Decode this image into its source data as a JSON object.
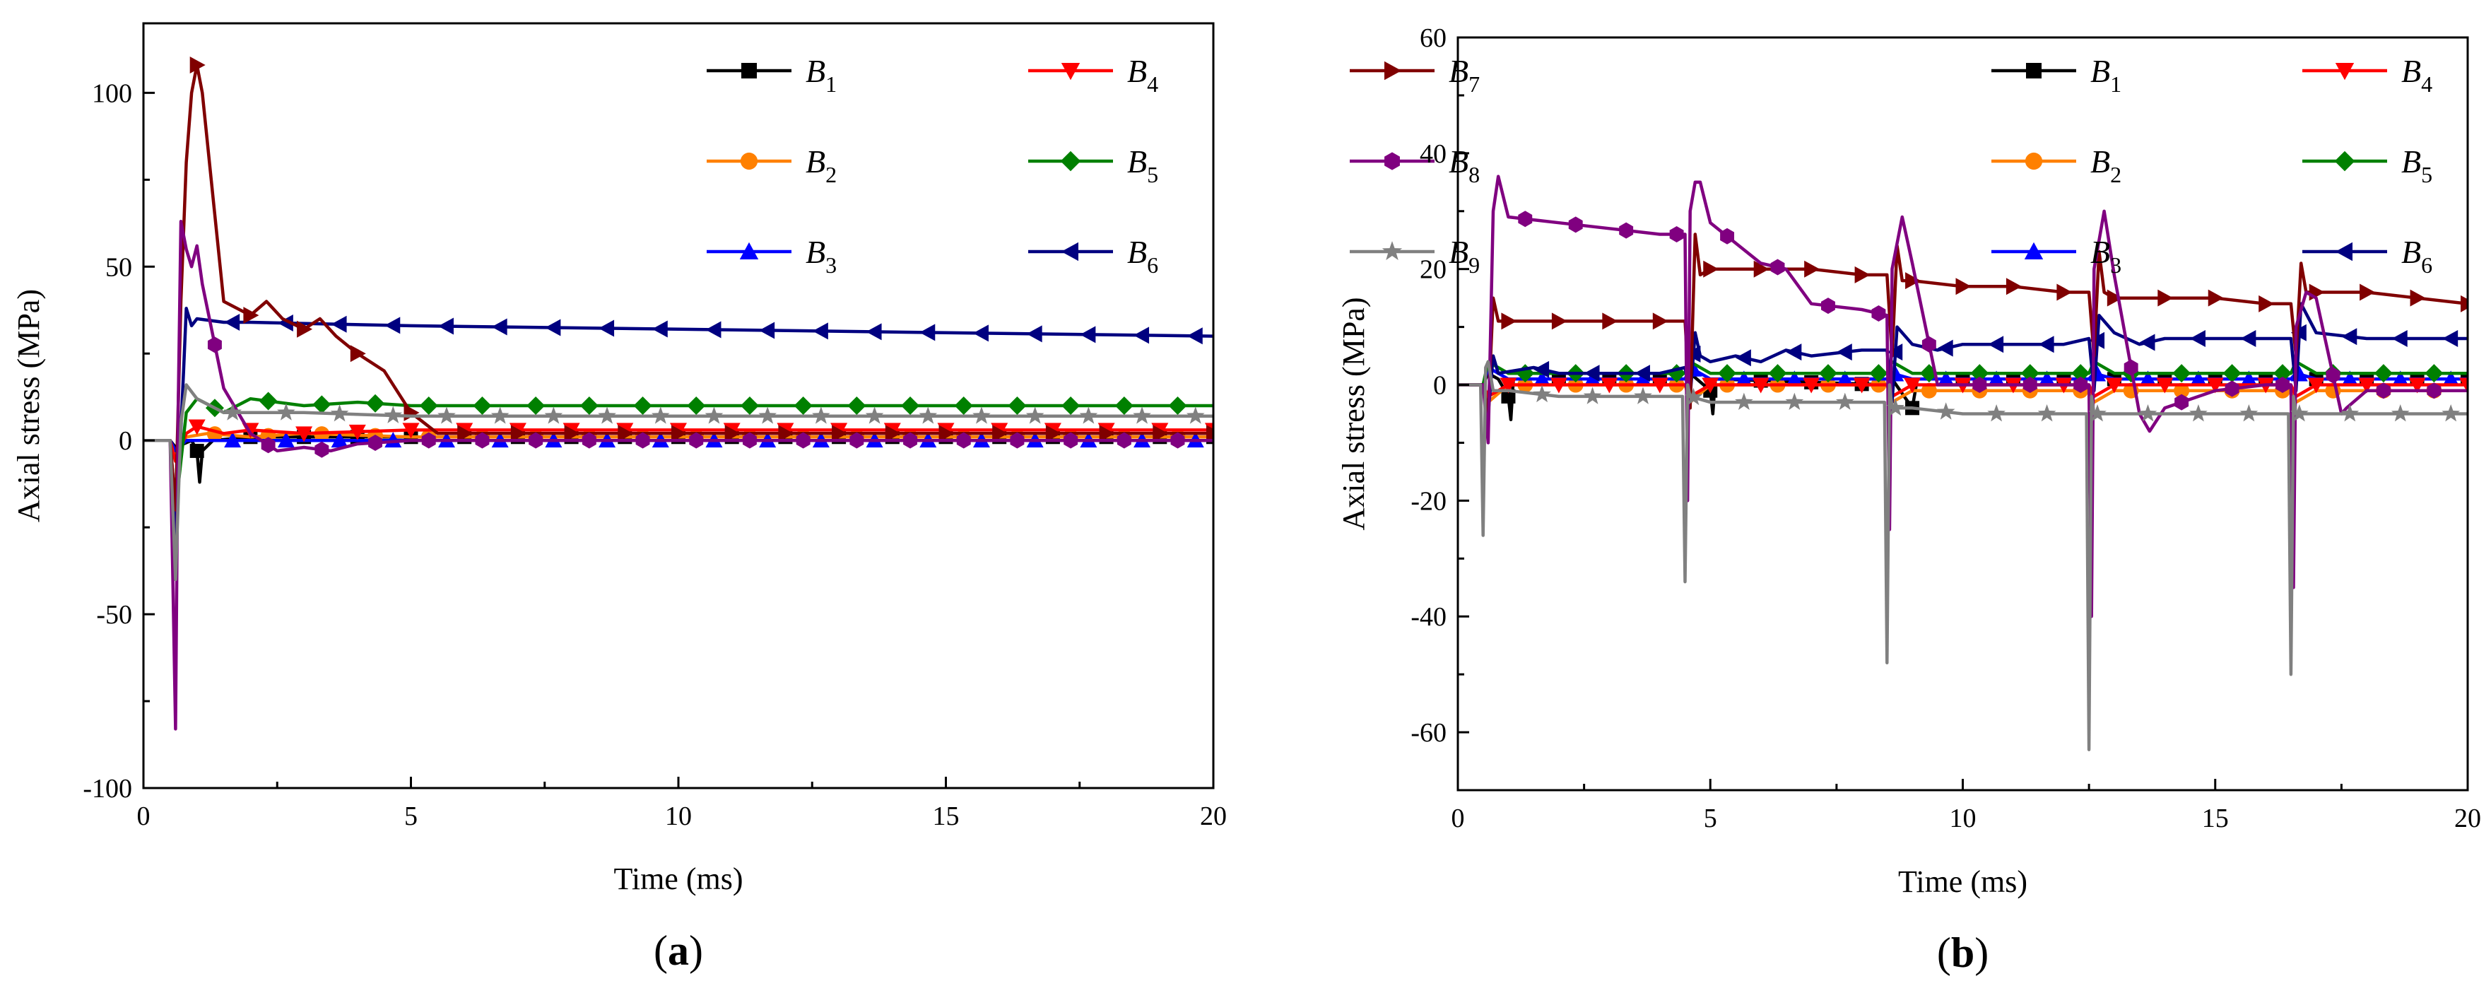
{
  "chart_data": [
    {
      "type": "line",
      "panel_label": "a",
      "xlabel": "Time (ms)",
      "ylabel": "Axial stress (MPa)",
      "xlim": [
        0,
        20
      ],
      "ylim": [
        -100,
        120
      ],
      "xticks": [
        0,
        5,
        10,
        15,
        20
      ],
      "yticks": [
        -100,
        -50,
        0,
        50,
        100
      ],
      "grid": false,
      "legend_placement": "top-right",
      "series": [
        {
          "name": "B1",
          "color": "#000000",
          "marker": "square",
          "x": [
            0,
            0.5,
            0.6,
            0.9,
            1.0,
            1.05,
            1.1,
            1.3,
            2,
            5,
            10,
            15,
            20
          ],
          "y": [
            0,
            0,
            -2,
            0,
            -3,
            -12,
            -3,
            0,
            1,
            1,
            1,
            1,
            1
          ]
        },
        {
          "name": "B2",
          "color": "#FF8000",
          "marker": "circle",
          "x": [
            0,
            0.5,
            0.6,
            0.8,
            1.2,
            2,
            3,
            5,
            10,
            15,
            20
          ],
          "y": [
            0,
            0,
            -5,
            1,
            2,
            1,
            2,
            1,
            1,
            1,
            1
          ]
        },
        {
          "name": "B3",
          "color": "#0000FF",
          "marker": "triangle-up",
          "x": [
            0,
            0.5,
            0.6,
            0.8,
            1.2,
            2,
            5,
            10,
            15,
            20
          ],
          "y": [
            0,
            0,
            -3,
            0,
            0,
            0,
            0,
            0,
            0,
            0
          ]
        },
        {
          "name": "B4",
          "color": "#FF0000",
          "marker": "triangle-down",
          "x": [
            0,
            0.5,
            0.6,
            0.8,
            1.0,
            1.5,
            2,
            3,
            5,
            10,
            15,
            20
          ],
          "y": [
            0,
            0,
            -6,
            2,
            4,
            2,
            3,
            2,
            3,
            3,
            3,
            3
          ]
        },
        {
          "name": "B5",
          "color": "#008000",
          "marker": "diamond",
          "x": [
            0,
            0.5,
            0.6,
            0.8,
            1.0,
            1.5,
            2,
            3,
            4,
            5,
            10,
            15,
            20
          ],
          "y": [
            0,
            0,
            -20,
            8,
            12,
            8,
            12,
            10,
            11,
            10,
            10,
            10,
            10
          ]
        },
        {
          "name": "B6",
          "color": "#000080",
          "marker": "triangle-left",
          "x": [
            0,
            0.5,
            0.6,
            0.75,
            0.8,
            0.9,
            1.0,
            1.5,
            2,
            5,
            10,
            15,
            20
          ],
          "y": [
            0,
            0,
            -30,
            20,
            38,
            33,
            35,
            34,
            34,
            33,
            32,
            31,
            30
          ]
        },
        {
          "name": "B7",
          "color": "#800000",
          "marker": "triangle-right",
          "x": [
            0,
            0.5,
            0.6,
            0.7,
            0.8,
            0.9,
            1.0,
            1.1,
            1.3,
            1.5,
            2,
            2.3,
            2.6,
            3,
            3.3,
            3.6,
            4,
            4.5,
            5,
            5.5,
            10,
            15,
            20
          ],
          "y": [
            0,
            0,
            -20,
            40,
            80,
            100,
            108,
            100,
            70,
            40,
            36,
            40,
            35,
            32,
            35,
            30,
            25,
            20,
            8,
            2,
            2,
            2,
            2
          ]
        },
        {
          "name": "B8",
          "color": "#800080",
          "marker": "hexagon",
          "x": [
            0,
            0.5,
            0.55,
            0.6,
            0.65,
            0.7,
            0.8,
            0.9,
            1.0,
            1.1,
            1.5,
            2,
            2.5,
            3,
            3.5,
            4,
            5,
            10,
            15,
            20
          ],
          "y": [
            0,
            0,
            -40,
            -83,
            10,
            63,
            55,
            50,
            56,
            45,
            15,
            2,
            -3,
            -2,
            -3,
            -1,
            0,
            0,
            0,
            0
          ]
        },
        {
          "name": "B9",
          "color": "#808080",
          "marker": "star",
          "x": [
            0,
            0.5,
            0.6,
            0.7,
            0.8,
            1.0,
            1.5,
            2,
            3,
            5,
            10,
            15,
            20
          ],
          "y": [
            0,
            0,
            -40,
            5,
            16,
            12,
            8,
            8,
            8,
            7,
            7,
            7,
            7
          ]
        }
      ]
    },
    {
      "type": "line",
      "panel_label": "b",
      "xlabel": "Time (ms)",
      "ylabel": "Axial stress (MPa)",
      "xlim": [
        0,
        20
      ],
      "ylim": [
        -70,
        60
      ],
      "xticks": [
        0,
        5,
        10,
        15,
        20
      ],
      "yticks": [
        -60,
        -40,
        -20,
        0,
        20,
        40,
        60
      ],
      "grid": false,
      "legend_placement": "top-right",
      "series": [
        {
          "name": "B1",
          "color": "#000000",
          "marker": "square",
          "x": [
            0,
            0.5,
            0.6,
            0.8,
            1.0,
            1.05,
            1.1,
            1.5,
            4.5,
            4.6,
            5.0,
            5.05,
            5.1,
            8.5,
            8.6,
            9.0,
            9.1,
            12.5,
            12.6,
            13,
            16.5,
            16.6,
            17,
            20
          ],
          "y": [
            0,
            0,
            2,
            1,
            -2,
            -6,
            1,
            1,
            1,
            2,
            -1,
            -5,
            1,
            0,
            1,
            -4,
            1,
            1,
            2,
            1,
            1,
            2,
            1,
            1
          ]
        },
        {
          "name": "B2",
          "color": "#FF8000",
          "marker": "circle",
          "x": [
            0,
            0.5,
            0.6,
            1,
            4.5,
            4.6,
            5,
            8.5,
            8.6,
            9,
            12.5,
            12.6,
            13,
            16.5,
            16.6,
            17,
            20
          ],
          "y": [
            0,
            0,
            -3,
            0,
            0,
            -3,
            0,
            0,
            -3,
            -1,
            -1,
            -3,
            -1,
            -1,
            -3,
            -1,
            -1
          ]
        },
        {
          "name": "B3",
          "color": "#0000FF",
          "marker": "triangle-up",
          "x": [
            0,
            0.5,
            0.6,
            1,
            4.5,
            4.6,
            5,
            8.5,
            8.6,
            9,
            12.5,
            12.6,
            13,
            16.5,
            16.6,
            17,
            20
          ],
          "y": [
            0,
            0,
            3,
            1,
            1,
            3,
            1,
            1,
            2,
            1,
            1,
            2,
            1,
            1,
            2,
            1,
            1
          ]
        },
        {
          "name": "B4",
          "color": "#FF0000",
          "marker": "triangle-down",
          "x": [
            0,
            0.5,
            0.6,
            1,
            4.5,
            4.6,
            5,
            8.5,
            8.6,
            9,
            12.5,
            12.6,
            13,
            16.5,
            16.6,
            17,
            20
          ],
          "y": [
            0,
            0,
            -2,
            0,
            0,
            -2,
            0,
            0,
            -2,
            0,
            0,
            -2,
            0,
            0,
            -2,
            0,
            0
          ]
        },
        {
          "name": "B5",
          "color": "#008000",
          "marker": "diamond",
          "x": [
            0,
            0.5,
            0.6,
            1,
            4.5,
            4.6,
            5,
            8.5,
            8.6,
            9,
            12.5,
            12.6,
            13,
            16.5,
            16.6,
            17,
            20
          ],
          "y": [
            0,
            0,
            4,
            2,
            2,
            4,
            2,
            2,
            4,
            2,
            2,
            4,
            2,
            2,
            4,
            2,
            2
          ]
        },
        {
          "name": "B6",
          "color": "#000080",
          "marker": "triangle-left",
          "x": [
            0,
            0.5,
            0.6,
            0.7,
            0.8,
            1.5,
            2,
            3,
            4,
            4.5,
            4.6,
            4.7,
            4.8,
            5,
            5.5,
            6,
            6.5,
            7,
            8,
            8.5,
            8.6,
            8.7,
            9,
            9.5,
            10,
            11,
            12,
            12.5,
            12.6,
            12.7,
            13,
            13.5,
            14,
            15,
            16,
            16.5,
            16.6,
            16.7,
            17,
            18,
            19,
            20
          ],
          "y": [
            0,
            0,
            -5,
            5,
            2,
            3,
            2,
            2,
            2,
            3,
            -2,
            9,
            5,
            4,
            5,
            4,
            6,
            5,
            6,
            6,
            -3,
            10,
            7,
            6,
            7,
            7,
            7,
            8,
            -1,
            12,
            9,
            7,
            8,
            8,
            8,
            8,
            -1,
            14,
            9,
            8,
            8,
            8
          ]
        },
        {
          "name": "B7",
          "color": "#800000",
          "marker": "triangle-right",
          "x": [
            0,
            0.5,
            0.6,
            0.7,
            0.8,
            1,
            2,
            3,
            4,
            4.5,
            4.6,
            4.7,
            4.8,
            5,
            6,
            7,
            8,
            8.5,
            8.6,
            8.7,
            8.8,
            9,
            10,
            11,
            12,
            12.5,
            12.6,
            12.7,
            12.8,
            13,
            14,
            15,
            16,
            16.5,
            16.6,
            16.7,
            16.8,
            17,
            18,
            19,
            20
          ],
          "y": [
            0,
            0,
            -5,
            15,
            11,
            11,
            11,
            11,
            11,
            11,
            -4,
            26,
            19,
            20,
            20,
            20,
            19,
            19,
            5,
            24,
            18,
            18,
            17,
            17,
            16,
            16,
            5,
            23,
            16,
            15,
            15,
            15,
            14,
            14,
            5,
            21,
            16,
            16,
            16,
            15,
            14
          ]
        },
        {
          "name": "B8",
          "color": "#800080",
          "marker": "hexagon",
          "x": [
            0,
            0.5,
            0.6,
            0.7,
            0.8,
            1,
            2,
            3,
            4,
            4.5,
            4.55,
            4.6,
            4.7,
            4.8,
            5,
            6,
            6.5,
            7,
            8,
            8.5,
            8.55,
            8.6,
            8.8,
            9,
            9.5,
            10,
            12,
            12.5,
            12.55,
            12.6,
            12.8,
            13,
            13.5,
            13.7,
            14,
            15,
            16,
            16.5,
            16.55,
            16.6,
            16.8,
            17,
            17.5,
            17.6,
            18,
            19,
            20
          ],
          "y": [
            0,
            0,
            -10,
            30,
            36,
            29,
            28,
            27,
            26,
            26,
            -20,
            30,
            35,
            35,
            28,
            21,
            20,
            14,
            13,
            12,
            -25,
            20,
            29,
            21,
            0,
            0,
            0,
            0,
            -40,
            20,
            30,
            19,
            -5,
            -8,
            -4,
            -1,
            0,
            0,
            -35,
            10,
            16,
            15,
            -5,
            -4,
            -1,
            -1,
            -1
          ]
        },
        {
          "name": "B9",
          "color": "#808080",
          "marker": "star",
          "x": [
            0,
            0.45,
            0.5,
            0.55,
            0.6,
            0.7,
            1,
            2,
            3,
            4,
            4.45,
            4.5,
            4.55,
            4.6,
            5,
            6,
            7,
            8,
            8.45,
            8.5,
            8.55,
            8.6,
            9,
            10,
            11,
            12,
            12.45,
            12.5,
            12.55,
            12.6,
            13,
            14,
            15,
            16,
            16.45,
            16.5,
            16.55,
            16.6,
            17,
            18,
            19,
            20
          ],
          "y": [
            0,
            0,
            -26,
            3,
            4,
            -1,
            -1,
            -2,
            -2,
            -2,
            -2,
            -34,
            0,
            -2,
            -3,
            -3,
            -3,
            -3,
            -3,
            -48,
            0,
            -4,
            -4,
            -5,
            -5,
            -5,
            -5,
            -63,
            -2,
            -5,
            -5,
            -5,
            -5,
            -5,
            -5,
            -50,
            -2,
            -5,
            -5,
            -5,
            -5,
            -5
          ]
        }
      ]
    }
  ]
}
